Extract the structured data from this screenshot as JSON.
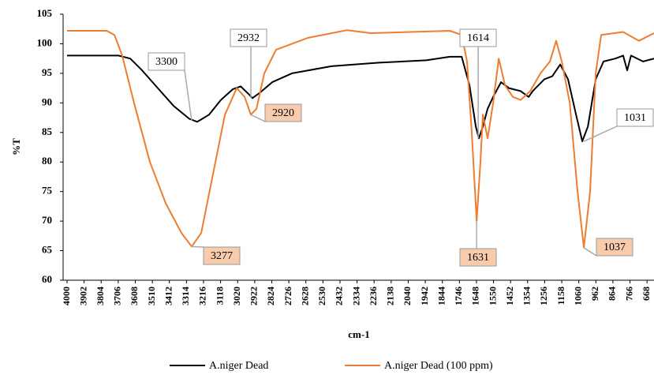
{
  "chart_data": {
    "type": "line",
    "y_label": "%T",
    "x_label": "cm-1",
    "xlim": [
      4000,
      628
    ],
    "ylim": [
      60,
      105
    ],
    "xticks": [
      4000,
      3902,
      3804,
      3706,
      3608,
      3510,
      3412,
      3314,
      3216,
      3118,
      3020,
      2922,
      2824,
      2726,
      2628,
      2530,
      2432,
      2334,
      2236,
      2138,
      2040,
      1942,
      1844,
      1746,
      1648,
      1550,
      1452,
      1354,
      1256,
      1158,
      1060,
      962,
      864,
      766,
      668
    ],
    "yticks": [
      60,
      65,
      70,
      75,
      80,
      85,
      90,
      95,
      100,
      105
    ],
    "series": [
      {
        "name": "A.niger Dead",
        "color": "#000000",
        "x": [
          4000,
          3705,
          3637,
          3569,
          3479,
          3388,
          3297,
          3252,
          3184,
          3116,
          3048,
          3003,
          2957,
          2935,
          2889,
          2821,
          2708,
          2481,
          2209,
          1937,
          1801,
          1733,
          1688,
          1652,
          1634,
          1611,
          1584,
          1552,
          1507,
          1462,
          1394,
          1348,
          1325,
          1258,
          1212,
          1167,
          1122,
          1076,
          1040,
          1008,
          963,
          918,
          850,
          805,
          782,
          760,
          691,
          628
        ],
        "values": [
          98,
          98,
          97.5,
          95.5,
          92.5,
          89.5,
          87.3,
          86.8,
          88,
          90.5,
          92.3,
          92.8,
          91.5,
          90.8,
          91.8,
          93.5,
          95,
          96.2,
          96.8,
          97.2,
          97.8,
          97.8,
          93,
          86,
          84,
          86,
          89,
          91,
          93.5,
          92.5,
          92,
          91,
          92,
          94,
          94.5,
          96.5,
          94,
          88,
          83.5,
          86,
          94,
          97,
          97.5,
          98,
          95.5,
          98,
          97,
          97.5
        ]
      },
      {
        "name": "A.niger Dead (100 ppm)",
        "color": "#ed7d31",
        "x": [
          4000,
          3773,
          3728,
          3683,
          3615,
          3524,
          3433,
          3343,
          3284,
          3229,
          3161,
          3093,
          3025,
          2980,
          2944,
          2912,
          2867,
          2799,
          2617,
          2391,
          2255,
          2028,
          1801,
          1733,
          1702,
          1675,
          1647,
          1625,
          1611,
          1584,
          1552,
          1520,
          1484,
          1439,
          1394,
          1339,
          1280,
          1226,
          1190,
          1158,
          1112,
          1067,
          1031,
          995,
          963,
          931,
          805,
          714,
          628
        ],
        "values": [
          102.2,
          102.2,
          101.5,
          98,
          90,
          80,
          73,
          68,
          65.7,
          68,
          78,
          88,
          92.5,
          91,
          88,
          89,
          95,
          99,
          101,
          102.3,
          101.8,
          102,
          102.2,
          101.5,
          97,
          85,
          70,
          80,
          88,
          84,
          90,
          97.5,
          93,
          91,
          90.5,
          92,
          95,
          97,
          100.5,
          97,
          90,
          75,
          65.5,
          75,
          95,
          101.5,
          102,
          100.5,
          101.8
        ]
      }
    ],
    "annotations": [
      {
        "text": "3300",
        "x": 3284,
        "y": 87
      },
      {
        "text": "2932",
        "x": 2944,
        "y": 90.8
      },
      {
        "text": "2920",
        "x": 2944,
        "y": 88
      },
      {
        "text": "3277",
        "x": 3284,
        "y": 65.7
      },
      {
        "text": "1614",
        "x": 1638,
        "y": 84
      },
      {
        "text": "1631",
        "x": 1647,
        "y": 70
      },
      {
        "text": "1031",
        "x": 1031,
        "y": 83.5
      },
      {
        "text": "1037",
        "x": 1031,
        "y": 65.5
      }
    ]
  }
}
